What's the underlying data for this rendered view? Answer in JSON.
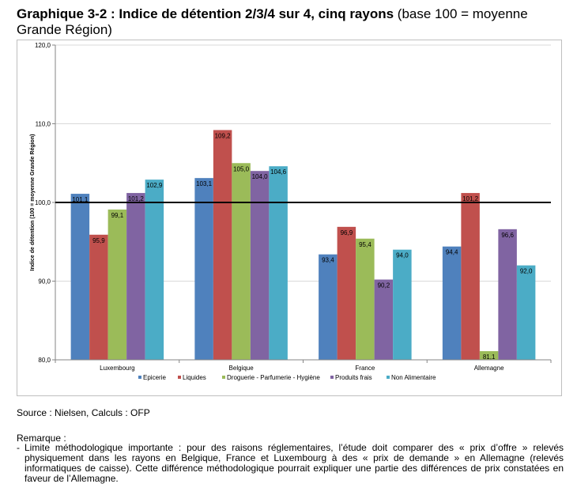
{
  "title": {
    "bold": "Graphique 3-2 : Indice de détention 2/3/4 sur 4, cinq rayons",
    "normal": " (base 100 = moyenne Grande Région)"
  },
  "chart_data": {
    "type": "bar",
    "ylabel": "Indice de détention (100 = moyenne Grande Région)",
    "ylim": [
      80,
      120
    ],
    "yticks": [
      "80,0",
      "90,0",
      "100,0",
      "110,0",
      "120,0"
    ],
    "reference_line": 100,
    "grid": true,
    "legend_position": "bottom",
    "categories": [
      "Luxembourg",
      "Belgique",
      "France",
      "Allemagne"
    ],
    "series": [
      {
        "name": "Epicerie",
        "color": "#4f81bd",
        "values": [
          101.1,
          103.1,
          93.4,
          94.4
        ],
        "labels": [
          "101,1",
          "103,1",
          "93,4",
          "94,4"
        ]
      },
      {
        "name": "Liquides",
        "color": "#c0504d",
        "values": [
          95.9,
          109.2,
          96.9,
          101.2
        ],
        "labels": [
          "95,9",
          "109,2",
          "96,9",
          "101,2"
        ]
      },
      {
        "name": "Droguerie - Parfumerie - Hygiène",
        "color": "#9bbb59",
        "values": [
          99.1,
          105.0,
          95.4,
          81.1
        ],
        "labels": [
          "99,1",
          "105,0",
          "95,4",
          "81,1"
        ]
      },
      {
        "name": "Produits frais",
        "color": "#8064a2",
        "values": [
          101.2,
          104.0,
          90.2,
          96.6
        ],
        "labels": [
          "101,2",
          "104,0",
          "90,2",
          "96,6"
        ]
      },
      {
        "name": "Non Alimentaire",
        "color": "#4bacc6",
        "values": [
          102.9,
          104.6,
          94.0,
          92.0
        ],
        "labels": [
          "102,9",
          "104,6",
          "94,0",
          "92,0"
        ]
      }
    ]
  },
  "source": "Source : Nielsen, Calculs : OFP",
  "remark": {
    "title": "Remarque :",
    "dash": "-",
    "text": "Limite méthodologique importante : pour des raisons réglementaires, l’étude doit comparer des « prix d’offre » relevés physiquement dans les rayons en Belgique, France et Luxembourg à des « prix de demande » en Allemagne (relevés informatiques de caisse). Cette différence méthodologique pourrait expliquer une partie des différences de prix constatées en faveur de l’Allemagne."
  }
}
